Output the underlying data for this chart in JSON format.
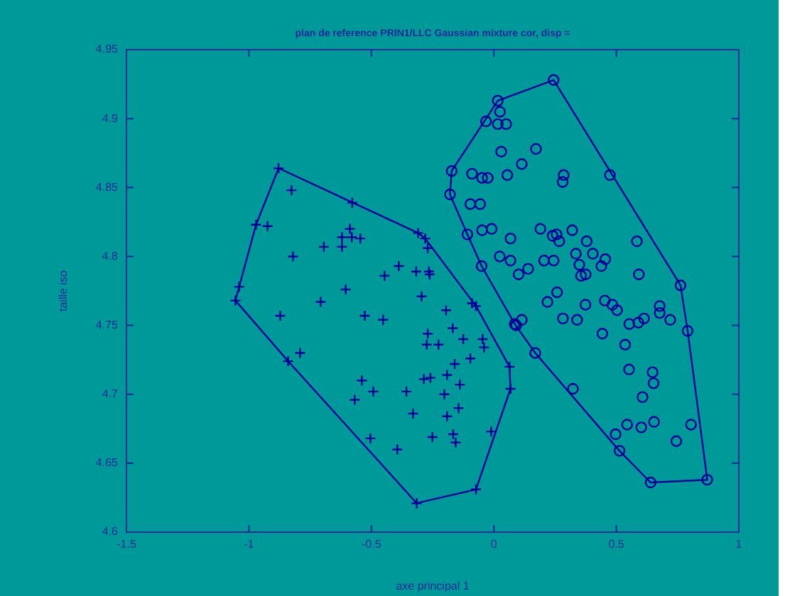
{
  "chart_data": {
    "type": "scatter",
    "title": "plan de reference PRIN1/LLC Gaussian mixture cor, disp =",
    "xlabel": "axe principal 1",
    "ylabel": "taille iso",
    "xlim": [
      -1.5,
      1
    ],
    "xticks": [
      -1.5,
      -1,
      -0.5,
      0,
      0.5,
      1
    ],
    "ylim": [
      4.6,
      4.95
    ],
    "yticks": [
      4.6,
      4.65,
      4.7,
      4.75,
      4.8,
      4.85,
      4.9,
      4.95
    ],
    "grid": false,
    "legend": false,
    "series": [
      {
        "type": "scatter",
        "marker": "cross",
        "color": "#000099",
        "x": [
          -1.055,
          -1.04,
          -0.971,
          -0.879,
          -0.578,
          -0.309,
          -0.28,
          -0.089,
          -0.073,
          0.064,
          0.068,
          -0.073,
          -0.315,
          -0.84,
          -0.826,
          -0.924,
          -0.588,
          -0.62,
          -0.58,
          -0.545,
          -0.27,
          -0.82,
          -0.694,
          -0.62,
          -0.388,
          -0.446,
          -0.317,
          -0.265,
          -0.262,
          -0.605,
          -0.707,
          -0.295,
          -0.195,
          -0.872,
          -0.527,
          -0.452,
          -0.27,
          -0.168,
          -0.274,
          -0.226,
          -0.125,
          -0.046,
          -0.04,
          -0.791,
          -0.096,
          -0.16,
          -0.191,
          -0.539,
          -0.286,
          -0.259,
          -0.139,
          -0.492,
          -0.357,
          -0.202,
          -0.568,
          -0.144,
          -0.33,
          -0.191,
          -0.011,
          -0.504,
          -0.251,
          -0.166,
          -0.156,
          -0.394
        ],
        "values": [
          4.768,
          4.778,
          4.823,
          4.864,
          4.839,
          4.817,
          4.813,
          4.766,
          4.764,
          4.72,
          4.704,
          4.631,
          4.621,
          4.724,
          4.848,
          4.822,
          4.82,
          4.814,
          4.814,
          4.813,
          4.806,
          4.8,
          4.807,
          4.807,
          4.793,
          4.786,
          4.789,
          4.789,
          4.787,
          4.776,
          4.767,
          4.771,
          4.761,
          4.757,
          4.757,
          4.754,
          4.744,
          4.748,
          4.736,
          4.736,
          4.74,
          4.74,
          4.734,
          4.73,
          4.726,
          4.722,
          4.714,
          4.71,
          4.711,
          4.712,
          4.707,
          4.702,
          4.702,
          4.7,
          4.696,
          4.69,
          4.686,
          4.684,
          4.673,
          4.668,
          4.669,
          4.671,
          4.665,
          4.66
        ]
      },
      {
        "type": "scatter",
        "marker": "circle",
        "color": "#000099",
        "x": [
          0.244,
          0.016,
          -0.032,
          -0.172,
          -0.179,
          -0.108,
          -0.05,
          0.085,
          0.091,
          0.169,
          0.323,
          0.513,
          0.64,
          0.871,
          0.791,
          0.762,
          0.474,
          0.025,
          0.016,
          0.05,
          0.03,
          0.172,
          0.114,
          -0.089,
          -0.048,
          -0.025,
          0.055,
          0.285,
          0.281,
          -0.096,
          -0.056,
          -0.048,
          -0.009,
          0.068,
          0.19,
          0.24,
          0.256,
          0.267,
          0.32,
          0.379,
          0.584,
          0.024,
          0.068,
          0.205,
          0.244,
          0.335,
          0.404,
          0.349,
          0.455,
          0.439,
          0.101,
          0.14,
          0.356,
          0.375,
          0.592,
          0.258,
          0.219,
          0.282,
          0.34,
          0.114,
          0.374,
          0.453,
          0.484,
          0.503,
          0.677,
          0.677,
          0.72,
          0.613,
          0.59,
          0.553,
          0.443,
          0.536,
          0.552,
          0.648,
          0.652,
          0.607,
          0.544,
          0.602,
          0.654,
          0.805,
          0.497,
          0.745
        ],
        "values": [
          4.928,
          4.913,
          4.898,
          4.862,
          4.845,
          4.816,
          4.793,
          4.751,
          4.75,
          4.73,
          4.704,
          4.659,
          4.636,
          4.638,
          4.746,
          4.779,
          4.859,
          4.905,
          4.896,
          4.896,
          4.876,
          4.878,
          4.867,
          4.86,
          4.857,
          4.857,
          4.859,
          4.859,
          4.854,
          4.838,
          4.838,
          4.819,
          4.82,
          4.813,
          4.82,
          4.815,
          4.816,
          4.811,
          4.819,
          4.811,
          4.811,
          4.8,
          4.797,
          4.797,
          4.797,
          4.802,
          4.802,
          4.794,
          4.798,
          4.793,
          4.787,
          4.791,
          4.786,
          4.787,
          4.787,
          4.774,
          4.767,
          4.755,
          4.754,
          4.754,
          4.765,
          4.768,
          4.765,
          4.761,
          4.764,
          4.759,
          4.754,
          4.755,
          4.752,
          4.751,
          4.744,
          4.736,
          4.718,
          4.716,
          4.708,
          4.698,
          4.678,
          4.676,
          4.68,
          4.678,
          4.671,
          4.666
        ]
      }
    ]
  }
}
